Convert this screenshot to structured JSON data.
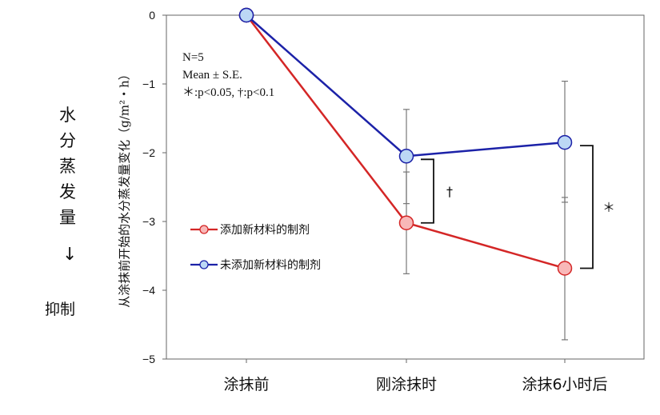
{
  "side_label": {
    "chars": [
      "水",
      "分",
      "蒸",
      "发",
      "量"
    ],
    "arrow": "↓",
    "suppress": "抑制"
  },
  "stats_box": {
    "line1": "N=5",
    "line2": "Mean ± S.E.",
    "line3": "＊:p<0.05, †:p<0.1"
  },
  "chart_data": {
    "type": "line",
    "title": "",
    "ylabel": "从涂抹前开始的水分蒸发量变化（g/m²・h）",
    "xlabel": "",
    "categories": [
      "涂抹前",
      "刚涂抹时",
      "涂抹6小时后"
    ],
    "ylim": [
      -5,
      0
    ],
    "yticks": [
      0,
      -1,
      -2,
      -3,
      -4,
      -5
    ],
    "ytick_labels": [
      "0",
      "−1",
      "−2",
      "−3",
      "−4",
      "−5"
    ],
    "series": [
      {
        "name": "添加新材料的制剂",
        "values": [
          0,
          -3.02,
          -3.68
        ],
        "error_low": [
          0,
          -3.76,
          -4.72
        ],
        "error_high": [
          0,
          -2.28,
          -2.65
        ],
        "line_color": "#d42626",
        "marker_fill": "#f8b8b8"
      },
      {
        "name": "未添加新材料的制剂",
        "values": [
          0,
          -2.05,
          -1.85
        ],
        "error_low": [
          0,
          -2.74,
          -2.72
        ],
        "error_high": [
          0,
          -1.37,
          -0.96
        ],
        "line_color": "#1c22a8",
        "marker_fill": "#bcd8f5"
      }
    ],
    "significance": [
      {
        "category_index": 1,
        "label": "†"
      },
      {
        "category_index": 2,
        "label": "＊"
      }
    ],
    "legend_position": "lower-left",
    "grid": false
  }
}
